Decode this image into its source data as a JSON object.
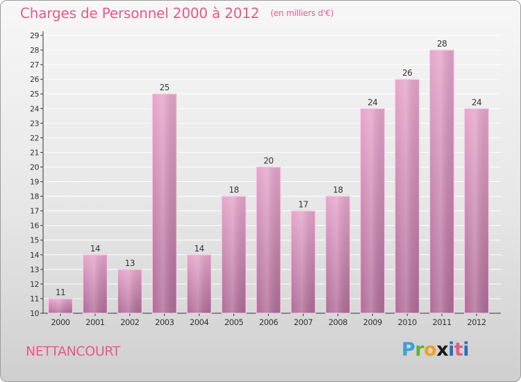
{
  "title": "Charges de Personnel 2000 à 2012",
  "subtitle": "(en milliers d'€)",
  "commune": "NETTANCOURT",
  "logo": "Proxiti",
  "colors": {
    "title": "#e8588a",
    "bar_top": "#e6a6cc",
    "bar_bottom": "#b06d98",
    "axis": "#333333",
    "grid": "#ffffff"
  },
  "chart_data": {
    "type": "bar",
    "categories": [
      "2000",
      "2001",
      "2002",
      "2003",
      "2004",
      "2005",
      "2006",
      "2007",
      "2008",
      "2009",
      "2010",
      "2011",
      "2012"
    ],
    "values": [
      11,
      14,
      13,
      25,
      14,
      18,
      20,
      17,
      18,
      24,
      26,
      28,
      24
    ],
    "ylim": [
      10,
      29
    ],
    "yticks": [
      10,
      11,
      12,
      13,
      14,
      15,
      16,
      17,
      18,
      19,
      20,
      21,
      22,
      23,
      24,
      25,
      26,
      27,
      28,
      29
    ],
    "grid": true,
    "data_labels": true
  }
}
